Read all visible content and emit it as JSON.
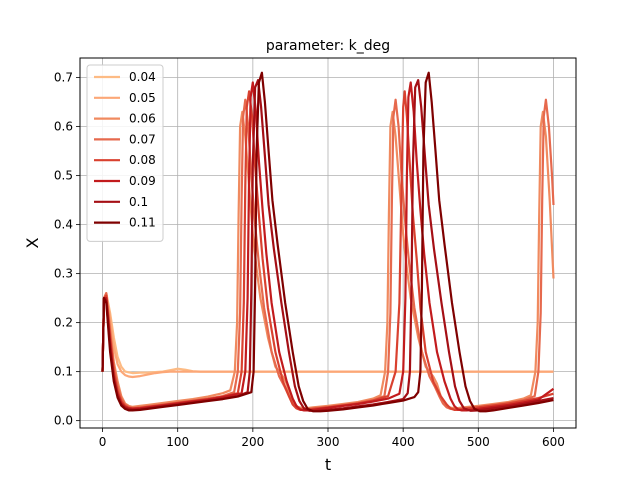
{
  "chart_data": {
    "type": "line",
    "title": "parameter: k_deg",
    "xlabel": "t",
    "ylabel": "X",
    "xlim": [
      -30,
      630
    ],
    "ylim": [
      -0.015,
      0.74
    ],
    "xticks": [
      0,
      100,
      200,
      300,
      400,
      500,
      600
    ],
    "yticks": [
      0.0,
      0.1,
      0.2,
      0.3,
      0.4,
      0.5,
      0.6,
      0.7
    ],
    "grid": true,
    "legend_position": "top-left",
    "series": [
      {
        "name": "0.04",
        "color": "#fdbb84",
        "x": [
          0,
          2,
          5,
          10,
          15,
          20,
          25,
          30,
          40,
          50,
          60,
          70,
          80,
          90,
          100,
          110,
          120,
          130,
          140,
          150,
          200,
          300,
          400,
          500,
          600
        ],
        "y": [
          0.1,
          0.25,
          0.26,
          0.22,
          0.17,
          0.13,
          0.11,
          0.1,
          0.097,
          0.098,
          0.098,
          0.099,
          0.1,
          0.103,
          0.106,
          0.104,
          0.101,
          0.1,
          0.1,
          0.1,
          0.1,
          0.1,
          0.1,
          0.1,
          0.1
        ]
      },
      {
        "name": "0.05",
        "color": "#fca777",
        "x": [
          0,
          2,
          5,
          10,
          15,
          20,
          25,
          30,
          35,
          40,
          50,
          60,
          70,
          80,
          90,
          100,
          120,
          150,
          200,
          300,
          400,
          500,
          600
        ],
        "y": [
          0.1,
          0.25,
          0.26,
          0.21,
          0.15,
          0.115,
          0.1,
          0.093,
          0.09,
          0.089,
          0.091,
          0.094,
          0.097,
          0.099,
          0.1,
          0.1,
          0.1,
          0.1,
          0.1,
          0.1,
          0.1,
          0.1,
          0.1
        ]
      },
      {
        "name": "0.06",
        "color": "#f08a5f",
        "x": [
          0,
          2,
          5,
          10,
          15,
          20,
          25,
          30,
          35,
          40,
          50,
          60,
          80,
          100,
          120,
          140,
          160,
          170,
          176,
          179,
          181,
          183,
          186,
          190,
          195,
          200,
          205,
          210,
          220,
          230,
          240,
          245,
          250,
          255,
          260,
          265,
          270,
          280,
          300,
          320,
          340,
          360,
          370,
          376,
          379,
          381,
          383,
          386,
          390,
          395,
          400,
          405,
          410,
          420,
          430,
          440,
          445,
          450,
          455,
          460,
          465,
          470,
          480,
          500,
          520,
          540,
          560,
          570,
          576,
          579,
          581,
          583,
          586,
          590,
          595,
          600
        ],
        "y": [
          0.1,
          0.25,
          0.26,
          0.19,
          0.12,
          0.08,
          0.05,
          0.035,
          0.03,
          0.028,
          0.03,
          0.032,
          0.036,
          0.04,
          0.044,
          0.049,
          0.056,
          0.062,
          0.1,
          0.2,
          0.42,
          0.6,
          0.63,
          0.58,
          0.48,
          0.38,
          0.31,
          0.25,
          0.17,
          0.11,
          0.09,
          0.075,
          0.05,
          0.035,
          0.028,
          0.026,
          0.025,
          0.027,
          0.03,
          0.034,
          0.038,
          0.045,
          0.052,
          0.1,
          0.2,
          0.42,
          0.6,
          0.63,
          0.58,
          0.48,
          0.38,
          0.31,
          0.25,
          0.17,
          0.11,
          0.09,
          0.075,
          0.05,
          0.035,
          0.028,
          0.026,
          0.025,
          0.027,
          0.03,
          0.034,
          0.038,
          0.045,
          0.052,
          0.1,
          0.2,
          0.42,
          0.6,
          0.63,
          0.58,
          0.45,
          0.29
        ]
      },
      {
        "name": "0.07",
        "color": "#e6694d",
        "x": [
          0,
          2,
          5,
          10,
          15,
          20,
          25,
          30,
          35,
          40,
          50,
          60,
          80,
          100,
          120,
          140,
          160,
          175,
          180,
          183,
          185,
          187,
          190,
          194,
          198,
          203,
          208,
          215,
          225,
          235,
          242,
          248,
          253,
          258,
          263,
          270,
          280,
          300,
          320,
          340,
          360,
          375,
          380,
          383,
          385,
          387,
          390,
          394,
          398,
          403,
          408,
          415,
          425,
          435,
          442,
          448,
          453,
          458,
          463,
          470,
          480,
          500,
          520,
          540,
          560,
          575,
          580,
          583,
          585,
          587,
          590,
          594,
          598,
          600
        ],
        "y": [
          0.1,
          0.25,
          0.26,
          0.18,
          0.11,
          0.07,
          0.045,
          0.033,
          0.028,
          0.026,
          0.027,
          0.029,
          0.033,
          0.037,
          0.041,
          0.045,
          0.05,
          0.058,
          0.1,
          0.22,
          0.45,
          0.62,
          0.655,
          0.6,
          0.5,
          0.4,
          0.32,
          0.23,
          0.14,
          0.09,
          0.07,
          0.05,
          0.035,
          0.027,
          0.024,
          0.023,
          0.025,
          0.028,
          0.032,
          0.036,
          0.042,
          0.05,
          0.1,
          0.22,
          0.45,
          0.62,
          0.655,
          0.6,
          0.5,
          0.4,
          0.32,
          0.23,
          0.14,
          0.09,
          0.07,
          0.05,
          0.035,
          0.027,
          0.024,
          0.023,
          0.025,
          0.028,
          0.032,
          0.036,
          0.042,
          0.05,
          0.1,
          0.22,
          0.45,
          0.62,
          0.655,
          0.6,
          0.5,
          0.44
        ]
      },
      {
        "name": "0.08",
        "color": "#d9412f",
        "x": [
          0,
          2,
          5,
          10,
          15,
          20,
          25,
          30,
          35,
          40,
          50,
          60,
          80,
          100,
          120,
          140,
          160,
          180,
          185,
          188,
          190,
          192,
          195,
          199,
          203,
          208,
          213,
          220,
          230,
          240,
          248,
          253,
          258,
          263,
          270,
          280,
          300,
          320,
          340,
          360,
          380,
          390,
          395,
          398,
          400,
          402,
          405,
          409,
          413,
          418,
          423,
          430,
          440,
          450,
          458,
          463,
          468,
          473,
          480,
          500,
          520,
          540,
          560,
          580,
          600
        ],
        "y": [
          0.1,
          0.25,
          0.255,
          0.17,
          0.1,
          0.06,
          0.04,
          0.03,
          0.026,
          0.025,
          0.026,
          0.028,
          0.032,
          0.036,
          0.04,
          0.044,
          0.049,
          0.056,
          0.1,
          0.24,
          0.48,
          0.64,
          0.672,
          0.62,
          0.52,
          0.42,
          0.33,
          0.23,
          0.14,
          0.08,
          0.05,
          0.033,
          0.025,
          0.022,
          0.022,
          0.024,
          0.027,
          0.031,
          0.035,
          0.041,
          0.05,
          0.1,
          0.24,
          0.48,
          0.64,
          0.672,
          0.62,
          0.52,
          0.42,
          0.33,
          0.23,
          0.14,
          0.08,
          0.05,
          0.033,
          0.025,
          0.022,
          0.022,
          0.024,
          0.027,
          0.031,
          0.035,
          0.04,
          0.046,
          0.055
        ]
      },
      {
        "name": "0.09",
        "color": "#c21b1d",
        "x": [
          0,
          2,
          5,
          10,
          15,
          20,
          25,
          30,
          35,
          40,
          50,
          60,
          80,
          100,
          120,
          140,
          160,
          185,
          190,
          193,
          195,
          197,
          200,
          204,
          208,
          213,
          218,
          225,
          235,
          245,
          253,
          258,
          263,
          268,
          275,
          285,
          300,
          320,
          340,
          360,
          380,
          395,
          400,
          403,
          405,
          407,
          410,
          414,
          418,
          423,
          428,
          435,
          445,
          455,
          463,
          468,
          473,
          478,
          485,
          500,
          520,
          540,
          560,
          580,
          600
        ],
        "y": [
          0.1,
          0.25,
          0.25,
          0.16,
          0.09,
          0.055,
          0.036,
          0.028,
          0.025,
          0.024,
          0.025,
          0.027,
          0.031,
          0.035,
          0.039,
          0.043,
          0.048,
          0.056,
          0.1,
          0.25,
          0.5,
          0.66,
          0.69,
          0.63,
          0.53,
          0.43,
          0.34,
          0.24,
          0.14,
          0.08,
          0.045,
          0.03,
          0.023,
          0.021,
          0.021,
          0.023,
          0.026,
          0.03,
          0.034,
          0.039,
          0.045,
          0.055,
          0.1,
          0.25,
          0.5,
          0.66,
          0.69,
          0.63,
          0.53,
          0.43,
          0.34,
          0.24,
          0.14,
          0.08,
          0.045,
          0.03,
          0.023,
          0.021,
          0.021,
          0.024,
          0.028,
          0.032,
          0.037,
          0.043,
          0.065
        ]
      },
      {
        "name": "0.1",
        "color": "#a50f15",
        "x": [
          0,
          2,
          5,
          10,
          15,
          20,
          25,
          30,
          35,
          40,
          50,
          60,
          80,
          100,
          120,
          140,
          160,
          180,
          193,
          196,
          198,
          200,
          203,
          207,
          211,
          216,
          221,
          228,
          238,
          248,
          256,
          262,
          268,
          275,
          285,
          300,
          320,
          340,
          360,
          380,
          400,
          406,
          409,
          411,
          413,
          416,
          420,
          424,
          429,
          434,
          441,
          451,
          461,
          469,
          475,
          481,
          490,
          500,
          520,
          540,
          560,
          580,
          600
        ],
        "y": [
          0.1,
          0.25,
          0.245,
          0.15,
          0.085,
          0.05,
          0.033,
          0.026,
          0.023,
          0.022,
          0.023,
          0.025,
          0.029,
          0.033,
          0.037,
          0.041,
          0.045,
          0.05,
          0.058,
          0.1,
          0.26,
          0.52,
          0.68,
          0.695,
          0.64,
          0.54,
          0.44,
          0.35,
          0.24,
          0.14,
          0.07,
          0.04,
          0.025,
          0.02,
          0.02,
          0.022,
          0.025,
          0.029,
          0.033,
          0.038,
          0.044,
          0.056,
          0.1,
          0.26,
          0.52,
          0.68,
          0.695,
          0.64,
          0.54,
          0.44,
          0.35,
          0.24,
          0.14,
          0.07,
          0.04,
          0.025,
          0.02,
          0.021,
          0.025,
          0.029,
          0.034,
          0.04,
          0.046
        ]
      },
      {
        "name": "0.11",
        "color": "#7f0000",
        "x": [
          0,
          2,
          5,
          10,
          15,
          20,
          25,
          30,
          35,
          40,
          50,
          60,
          80,
          100,
          120,
          140,
          160,
          180,
          198,
          201,
          203,
          205,
          208,
          212,
          216,
          221,
          226,
          233,
          243,
          253,
          261,
          267,
          273,
          280,
          290,
          300,
          320,
          340,
          360,
          380,
          400,
          415,
          420,
          423,
          425,
          427,
          430,
          434,
          438,
          443,
          448,
          455,
          465,
          475,
          483,
          489,
          495,
          502,
          510,
          520,
          540,
          560,
          580,
          600
        ],
        "y": [
          0.1,
          0.25,
          0.24,
          0.14,
          0.08,
          0.047,
          0.031,
          0.024,
          0.021,
          0.021,
          0.022,
          0.024,
          0.028,
          0.032,
          0.036,
          0.04,
          0.044,
          0.049,
          0.058,
          0.1,
          0.27,
          0.55,
          0.69,
          0.71,
          0.65,
          0.55,
          0.45,
          0.36,
          0.24,
          0.14,
          0.07,
          0.04,
          0.024,
          0.019,
          0.019,
          0.02,
          0.023,
          0.027,
          0.031,
          0.036,
          0.041,
          0.048,
          0.058,
          0.1,
          0.27,
          0.55,
          0.69,
          0.71,
          0.65,
          0.55,
          0.45,
          0.36,
          0.24,
          0.14,
          0.07,
          0.04,
          0.024,
          0.019,
          0.019,
          0.021,
          0.026,
          0.031,
          0.036,
          0.042
        ]
      }
    ]
  }
}
